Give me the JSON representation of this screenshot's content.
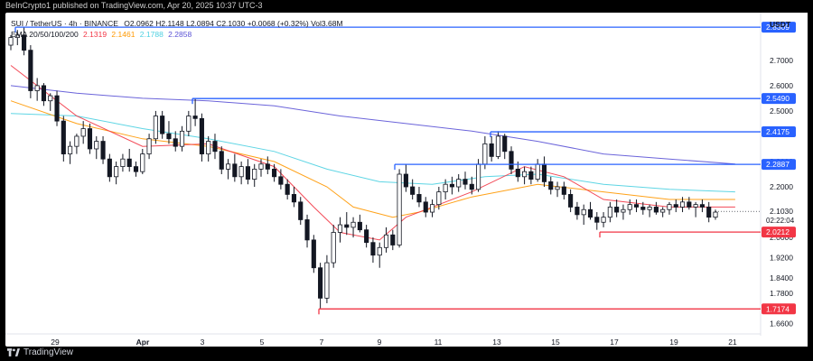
{
  "header": {
    "published": "BeInCrypto1 published on TradingView.com, Apr 20, 2025 10:37 UTC-3",
    "symbol": "SUI / TetherUS · 4h · BINANCE",
    "ohlc": "O2.0962 H2.1148 L2.0894 C2.1030 +0.0068 (+0.32%) Vol3.68M",
    "ema_label": "EMA 20/50/100/200",
    "ema_values": [
      "2.1319",
      "2.1461",
      "2.1788",
      "2.2858"
    ],
    "currency": "USDT",
    "footer_brand": "TradingView"
  },
  "colors": {
    "ema20": "#f23645",
    "ema50": "#ff9800",
    "ema100": "#4dd0e1",
    "ema200": "#5b53d6",
    "resistance": "#2962ff",
    "support": "#f23645",
    "candle_up": "#ffffff",
    "candle_down": "#131722"
  },
  "chart_data": {
    "type": "candlestick",
    "x_labels": [
      "29",
      "Apr",
      "3",
      "5",
      "7",
      "9",
      "11",
      "13",
      "15",
      "17",
      "19",
      "21"
    ],
    "y_ticks": [
      "2.7000",
      "2.6000",
      "2.5000",
      "2.3000",
      "2.2000",
      "2.0000",
      "1.9200",
      "1.8400",
      "1.7800",
      "1.6600"
    ],
    "ylim": [
      1.64,
      2.86
    ],
    "current_price": "2.1030",
    "countdown": "02:22:04",
    "resistance_levels": [
      {
        "value": 2.8309,
        "label": "2.8309",
        "from": "Mar 27"
      },
      {
        "value": 2.549,
        "label": "2.5490",
        "from": "Apr 2"
      },
      {
        "value": 2.4175,
        "label": "2.4175",
        "from": "Apr 12"
      },
      {
        "value": 2.2887,
        "label": "2.2887",
        "from": "Apr 9"
      }
    ],
    "support_levels": [
      {
        "value": 2.0212,
        "label": "2.0212",
        "from": "Apr 16"
      },
      {
        "value": 1.7174,
        "label": "1.7174",
        "from": "Apr 7"
      }
    ],
    "candles": [
      [
        2.76,
        2.8,
        2.74,
        2.79
      ],
      [
        2.79,
        2.82,
        2.76,
        2.8
      ],
      [
        2.8,
        2.83,
        2.72,
        2.74
      ],
      [
        2.74,
        2.76,
        2.55,
        2.58
      ],
      [
        2.58,
        2.63,
        2.54,
        2.6
      ],
      [
        2.6,
        2.61,
        2.52,
        2.54
      ],
      [
        2.54,
        2.57,
        2.5,
        2.56
      ],
      [
        2.56,
        2.58,
        2.44,
        2.46
      ],
      [
        2.46,
        2.48,
        2.3,
        2.33
      ],
      [
        2.33,
        2.38,
        2.29,
        2.36
      ],
      [
        2.36,
        2.41,
        2.33,
        2.4
      ],
      [
        2.4,
        2.46,
        2.37,
        2.43
      ],
      [
        2.43,
        2.45,
        2.33,
        2.35
      ],
      [
        2.35,
        2.4,
        2.31,
        2.38
      ],
      [
        2.38,
        2.4,
        2.29,
        2.31
      ],
      [
        2.31,
        2.33,
        2.22,
        2.24
      ],
      [
        2.24,
        2.3,
        2.21,
        2.28
      ],
      [
        2.28,
        2.33,
        2.26,
        2.31
      ],
      [
        2.31,
        2.35,
        2.26,
        2.28
      ],
      [
        2.28,
        2.3,
        2.24,
        2.26
      ],
      [
        2.26,
        2.35,
        2.25,
        2.33
      ],
      [
        2.33,
        2.41,
        2.31,
        2.39
      ],
      [
        2.39,
        2.5,
        2.37,
        2.48
      ],
      [
        2.48,
        2.5,
        2.39,
        2.41
      ],
      [
        2.41,
        2.46,
        2.37,
        2.39
      ],
      [
        2.39,
        2.42,
        2.34,
        2.36
      ],
      [
        2.36,
        2.44,
        2.34,
        2.42
      ],
      [
        2.42,
        2.5,
        2.4,
        2.48
      ],
      [
        2.48,
        2.55,
        2.44,
        2.47
      ],
      [
        2.47,
        2.49,
        2.3,
        2.33
      ],
      [
        2.33,
        2.4,
        2.3,
        2.38
      ],
      [
        2.38,
        2.41,
        2.31,
        2.34
      ],
      [
        2.34,
        2.36,
        2.25,
        2.27
      ],
      [
        2.27,
        2.31,
        2.23,
        2.29
      ],
      [
        2.29,
        2.33,
        2.22,
        2.24
      ],
      [
        2.24,
        2.3,
        2.21,
        2.28
      ],
      [
        2.28,
        2.31,
        2.21,
        2.23
      ],
      [
        2.23,
        2.29,
        2.2,
        2.27
      ],
      [
        2.27,
        2.31,
        2.24,
        2.29
      ],
      [
        2.29,
        2.32,
        2.25,
        2.27
      ],
      [
        2.27,
        2.29,
        2.22,
        2.24
      ],
      [
        2.24,
        2.27,
        2.19,
        2.21
      ],
      [
        2.21,
        2.23,
        2.15,
        2.17
      ],
      [
        2.17,
        2.2,
        2.12,
        2.14
      ],
      [
        2.14,
        2.16,
        2.05,
        2.07
      ],
      [
        2.07,
        2.09,
        1.96,
        1.99
      ],
      [
        1.99,
        2.01,
        1.86,
        1.88
      ],
      [
        1.88,
        1.9,
        1.72,
        1.76
      ],
      [
        1.76,
        1.93,
        1.74,
        1.9
      ],
      [
        1.9,
        2.05,
        1.88,
        2.02
      ],
      [
        2.02,
        2.08,
        1.98,
        2.05
      ],
      [
        2.05,
        2.1,
        2.01,
        2.04
      ],
      [
        2.04,
        2.08,
        2.0,
        2.06
      ],
      [
        2.06,
        2.09,
        2.02,
        2.03
      ],
      [
        2.03,
        2.05,
        1.96,
        1.98
      ],
      [
        1.98,
        2.0,
        1.9,
        1.93
      ],
      [
        1.93,
        1.98,
        1.88,
        1.96
      ],
      [
        1.96,
        2.04,
        1.94,
        2.01
      ],
      [
        2.01,
        2.03,
        1.95,
        1.97
      ],
      [
        1.97,
        2.27,
        1.96,
        2.25
      ],
      [
        2.25,
        2.29,
        2.18,
        2.2
      ],
      [
        2.2,
        2.23,
        2.15,
        2.17
      ],
      [
        2.17,
        2.2,
        2.12,
        2.14
      ],
      [
        2.14,
        2.16,
        2.08,
        2.1
      ],
      [
        2.1,
        2.15,
        2.08,
        2.13
      ],
      [
        2.13,
        2.2,
        2.11,
        2.18
      ],
      [
        2.18,
        2.23,
        2.15,
        2.21
      ],
      [
        2.21,
        2.24,
        2.17,
        2.2
      ],
      [
        2.2,
        2.25,
        2.18,
        2.23
      ],
      [
        2.23,
        2.26,
        2.19,
        2.21
      ],
      [
        2.21,
        2.24,
        2.17,
        2.19
      ],
      [
        2.19,
        2.31,
        2.18,
        2.29
      ],
      [
        2.29,
        2.4,
        2.27,
        2.37
      ],
      [
        2.37,
        2.4,
        2.3,
        2.32
      ],
      [
        2.32,
        2.42,
        2.31,
        2.4
      ],
      [
        2.4,
        2.41,
        2.31,
        2.34
      ],
      [
        2.34,
        2.36,
        2.25,
        2.27
      ],
      [
        2.27,
        2.3,
        2.22,
        2.24
      ],
      [
        2.24,
        2.28,
        2.21,
        2.26
      ],
      [
        2.26,
        2.28,
        2.21,
        2.23
      ],
      [
        2.23,
        2.31,
        2.22,
        2.29
      ],
      [
        2.29,
        2.32,
        2.2,
        2.22
      ],
      [
        2.22,
        2.24,
        2.17,
        2.19
      ],
      [
        2.19,
        2.22,
        2.16,
        2.2
      ],
      [
        2.2,
        2.22,
        2.15,
        2.17
      ],
      [
        2.17,
        2.19,
        2.1,
        2.12
      ],
      [
        2.12,
        2.14,
        2.07,
        2.09
      ],
      [
        2.09,
        2.13,
        2.05,
        2.11
      ],
      [
        2.11,
        2.14,
        2.07,
        2.08
      ],
      [
        2.08,
        2.1,
        2.03,
        2.06
      ],
      [
        2.06,
        2.1,
        2.04,
        2.08
      ],
      [
        2.08,
        2.14,
        2.06,
        2.12
      ],
      [
        2.12,
        2.15,
        2.08,
        2.1
      ],
      [
        2.1,
        2.13,
        2.07,
        2.11
      ],
      [
        2.11,
        2.15,
        2.09,
        2.13
      ],
      [
        2.13,
        2.15,
        2.1,
        2.12
      ],
      [
        2.12,
        2.14,
        2.09,
        2.11
      ],
      [
        2.11,
        2.13,
        2.08,
        2.12
      ],
      [
        2.12,
        2.14,
        2.09,
        2.1
      ],
      [
        2.1,
        2.12,
        2.08,
        2.11
      ],
      [
        2.11,
        2.14,
        2.09,
        2.13
      ],
      [
        2.13,
        2.15,
        2.1,
        2.12
      ],
      [
        2.12,
        2.16,
        2.1,
        2.14
      ],
      [
        2.14,
        2.16,
        2.11,
        2.12
      ],
      [
        2.12,
        2.14,
        2.08,
        2.13
      ],
      [
        2.13,
        2.15,
        2.1,
        2.12
      ],
      [
        2.12,
        2.14,
        2.06,
        2.08
      ],
      [
        2.08,
        2.11,
        2.07,
        2.1
      ]
    ],
    "ema": {
      "ema20": [
        [
          0,
          2.68
        ],
        [
          10,
          2.48
        ],
        [
          20,
          2.36
        ],
        [
          30,
          2.37
        ],
        [
          40,
          2.28
        ],
        [
          46,
          2.12
        ],
        [
          50,
          2.02
        ],
        [
          56,
          1.99
        ],
        [
          60,
          2.08
        ],
        [
          70,
          2.18
        ],
        [
          78,
          2.28
        ],
        [
          84,
          2.24
        ],
        [
          90,
          2.15
        ],
        [
          100,
          2.12
        ],
        [
          110,
          2.12
        ]
      ],
      "ema50": [
        [
          0,
          2.54
        ],
        [
          10,
          2.45
        ],
        [
          20,
          2.39
        ],
        [
          30,
          2.36
        ],
        [
          40,
          2.3
        ],
        [
          48,
          2.2
        ],
        [
          52,
          2.12
        ],
        [
          58,
          2.08
        ],
        [
          62,
          2.1
        ],
        [
          70,
          2.16
        ],
        [
          80,
          2.21
        ],
        [
          90,
          2.18
        ],
        [
          100,
          2.15
        ],
        [
          110,
          2.15
        ]
      ],
      "ema100": [
        [
          0,
          2.49
        ],
        [
          10,
          2.48
        ],
        [
          20,
          2.43
        ],
        [
          30,
          2.39
        ],
        [
          40,
          2.34
        ],
        [
          48,
          2.27
        ],
        [
          56,
          2.22
        ],
        [
          64,
          2.21
        ],
        [
          72,
          2.24
        ],
        [
          80,
          2.25
        ],
        [
          90,
          2.21
        ],
        [
          100,
          2.19
        ],
        [
          110,
          2.18
        ]
      ],
      "ema200": [
        [
          0,
          2.6
        ],
        [
          10,
          2.57
        ],
        [
          20,
          2.55
        ],
        [
          30,
          2.54
        ],
        [
          40,
          2.52
        ],
        [
          50,
          2.48
        ],
        [
          60,
          2.45
        ],
        [
          70,
          2.42
        ],
        [
          80,
          2.38
        ],
        [
          90,
          2.33
        ],
        [
          100,
          2.31
        ],
        [
          110,
          2.29
        ]
      ]
    }
  }
}
